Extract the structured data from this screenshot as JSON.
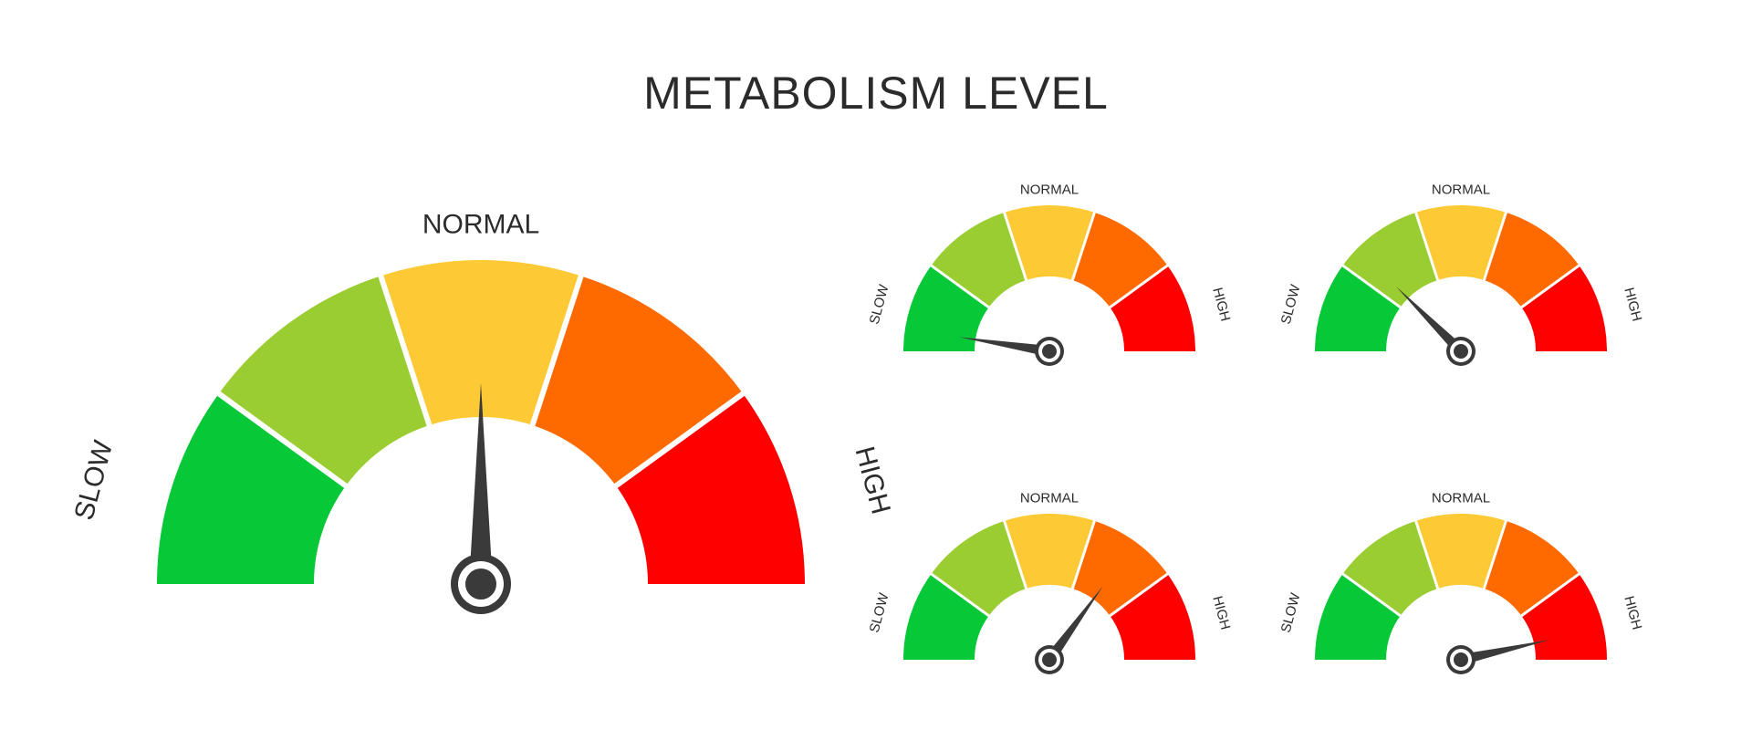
{
  "title": "METABOLISM LEVEL",
  "labels": {
    "slow": "SLOW",
    "normal": "NORMAL",
    "high": "HIGH"
  },
  "colors": {
    "segments": [
      "#07c837",
      "#9acd32",
      "#fdc934",
      "#ff6a00",
      "#ff0000"
    ],
    "gap": "#ffffff",
    "needle": "#3a3a3a",
    "text": "#2b2b2b"
  },
  "gauges": [
    {
      "id": "main",
      "level": 0.5
    },
    {
      "id": "small-1",
      "level": 0.05
    },
    {
      "id": "small-2",
      "level": 0.25
    },
    {
      "id": "small-3",
      "level": 0.7
    },
    {
      "id": "small-4",
      "level": 0.93
    }
  ]
}
